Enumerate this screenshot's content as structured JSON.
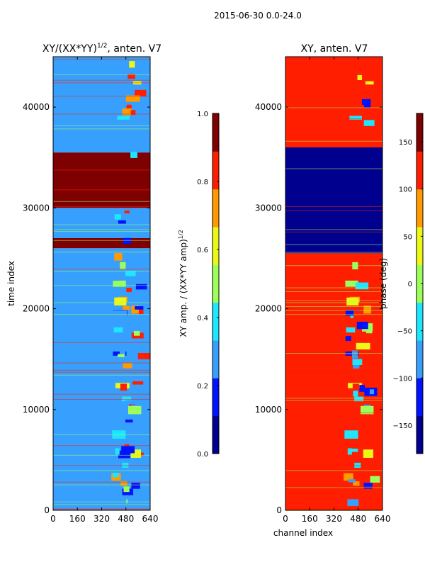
{
  "suptitle": "2015-06-30 0.0-24.0",
  "colors": {
    "dark_red": "#7f0000",
    "red": "#ff1e00",
    "orange": "#ff9a00",
    "yellow": "#ecf816",
    "lime": "#9cff5a",
    "cyan": "#1de6ff",
    "light_blue": "#37a0ff",
    "blue": "#0012ff",
    "dark_blue": "#00008f"
  },
  "chart_data": [
    {
      "type": "heatmap",
      "title": "XY/(XX*YY)",
      "title_exponent": "1/2",
      "title_suffix": ", anten. V7",
      "xlabel": "",
      "ylabel": "time index",
      "xlim": [
        0,
        640
      ],
      "ylim": [
        0,
        45000
      ],
      "xticks": [
        "0",
        "160",
        "320",
        "480",
        "640"
      ],
      "yticks": [
        "0",
        "10000",
        "20000",
        "30000",
        "40000"
      ],
      "bands": [
        {
          "y": [
            0,
            26000
          ],
          "value": 0.3
        },
        {
          "y": [
            26000,
            27000
          ],
          "value": 1.0
        },
        {
          "y": [
            27000,
            30000
          ],
          "value": 0.3
        },
        {
          "y": [
            30000,
            35500
          ],
          "value": 1.0
        },
        {
          "y": [
            35500,
            45000
          ],
          "value": 0.3
        }
      ],
      "colorbar": {
        "label": "XY amp. / (XX*YY amp)",
        "label_exponent": "1/2",
        "range": [
          0.0,
          1.0
        ],
        "ticks": [
          "0.0",
          "0.2",
          "0.4",
          "0.6",
          "0.8",
          "1.0"
        ]
      }
    },
    {
      "type": "heatmap",
      "title": "XY, anten. V7",
      "xlabel": "channel index",
      "ylabel": "",
      "xlim": [
        0,
        640
      ],
      "ylim": [
        0,
        45000
      ],
      "xticks": [
        "0",
        "160",
        "320",
        "480",
        "640"
      ],
      "yticks": [
        "0",
        "10000",
        "20000",
        "30000",
        "40000"
      ],
      "bands": [
        {
          "y": [
            0,
            25500
          ],
          "value": 140
        },
        {
          "y": [
            25500,
            36000
          ],
          "value": -170
        },
        {
          "y": [
            36000,
            45000
          ],
          "value": 140
        }
      ],
      "colorbar": {
        "label": "phase (deg)",
        "range": [
          -180,
          180
        ],
        "ticks": [
          "150",
          "100",
          "50",
          "0",
          "−50",
          "−100",
          "−150"
        ]
      }
    }
  ]
}
